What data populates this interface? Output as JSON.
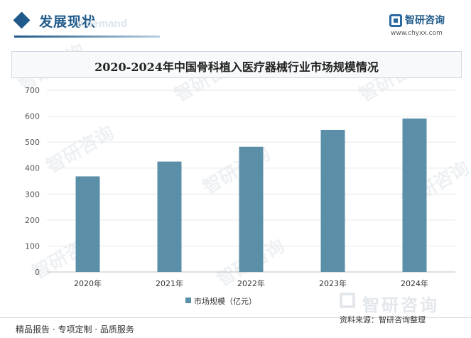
{
  "header": {
    "title": "发展现状",
    "subtitle_faint": "d demand",
    "logo_name": "智研咨询",
    "logo_url": "www.chyxx.com"
  },
  "watermark_text": "智研咨询",
  "footer": {
    "left": "精品报告 · 专项定制 · 品质服务",
    "source": "资料来源：智研咨询整理",
    "logo_text": "智研咨询"
  },
  "colors": {
    "bar": "#5b8fa8",
    "brand": "#1f5a8a",
    "grid": "#e6e6e6"
  },
  "chart_data": {
    "type": "bar",
    "title": "2020-2024年中国骨科植入医疗器械行业市场规模情况",
    "categories": [
      "2020年",
      "2021年",
      "2022年",
      "2023年",
      "2024年"
    ],
    "series": [
      {
        "name": "市场规模（亿元）",
        "values": [
          368,
          425,
          482,
          547,
          591
        ]
      }
    ],
    "ylim": [
      0,
      700
    ],
    "yticks": [
      0,
      100,
      200,
      300,
      400,
      500,
      600,
      700
    ],
    "xlabel": "",
    "ylabel": "",
    "grid": true,
    "legend": "bottom-center"
  }
}
